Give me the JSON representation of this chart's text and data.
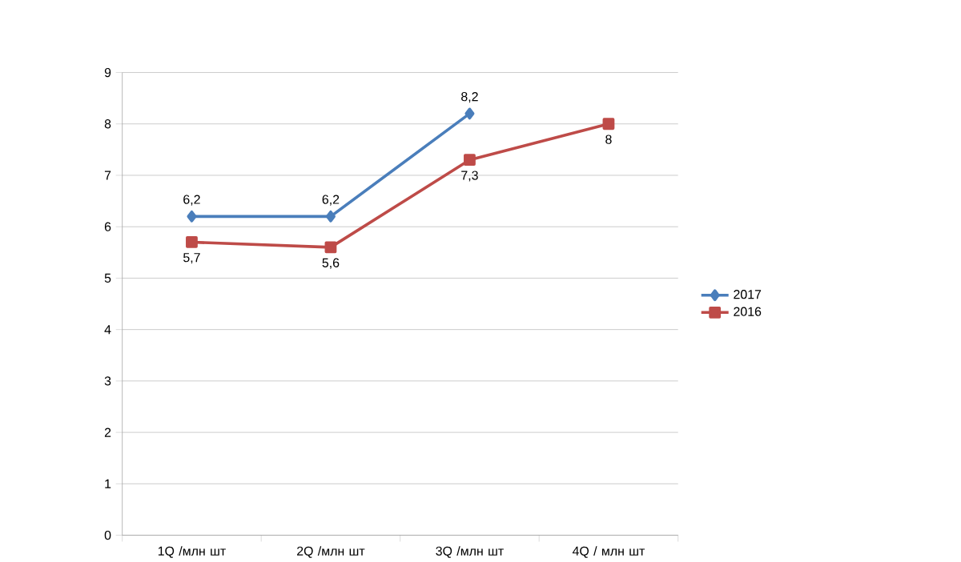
{
  "chart_data": {
    "type": "line",
    "categories": [
      "1Q /млн шт",
      "2Q /млн шт",
      "3Q /млн шт",
      "4Q / млн шт"
    ],
    "series": [
      {
        "name": "2017",
        "color": "#4a7ebb",
        "marker": "diamond",
        "values": [
          6.2,
          6.2,
          8.2,
          null
        ],
        "value_labels": [
          "6,2",
          "6,2",
          "8,2",
          null
        ]
      },
      {
        "name": "2016",
        "color": "#be4b48",
        "marker": "square",
        "values": [
          5.7,
          5.6,
          7.3,
          8
        ],
        "value_labels": [
          "5,7",
          "5,6",
          "7,3",
          "8"
        ]
      }
    ],
    "ylim": [
      0,
      9
    ],
    "yticks": [
      0,
      1,
      2,
      3,
      4,
      5,
      6,
      7,
      8,
      9
    ],
    "grid": "y",
    "legend": "right"
  }
}
